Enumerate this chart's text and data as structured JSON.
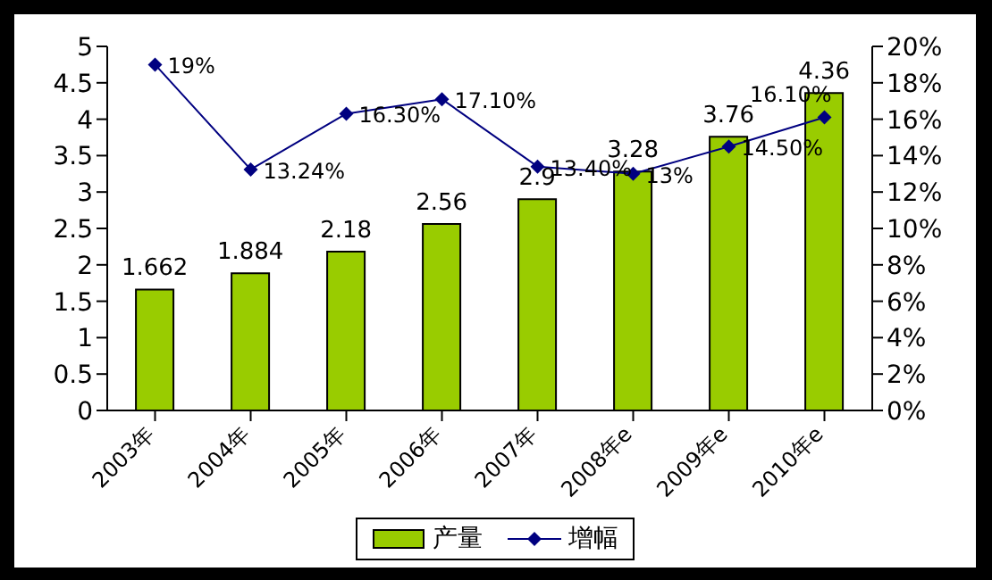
{
  "chart_data": {
    "type": "bar",
    "categories": [
      "2003年",
      "2004年",
      "2005年",
      "2006年",
      "2007年",
      "2008年e",
      "2009年e",
      "2010年e"
    ],
    "series": [
      {
        "name": "产量",
        "color": "#99cc00",
        "values": [
          1.662,
          1.884,
          2.18,
          2.56,
          2.9,
          3.28,
          3.76,
          4.36
        ],
        "value_labels": [
          "1.662",
          "1.884",
          "2.18",
          "2.56",
          "2.9",
          "3.28",
          "3.76",
          "4.36"
        ]
      },
      {
        "name": "增幅",
        "type": "line",
        "axis": "y2",
        "color": "#000080",
        "marker": "diamond",
        "values": [
          19,
          13.24,
          16.3,
          17.1,
          13.4,
          13,
          14.5,
          16.1
        ],
        "value_labels": [
          "19%",
          "13.24%",
          "16.30%",
          "17.10%",
          "13.40%",
          "13%",
          "14.50%",
          "16.10%"
        ]
      }
    ],
    "ylim": [
      0,
      5
    ],
    "yticks": [
      0,
      0.5,
      1,
      1.5,
      2,
      2.5,
      3,
      3.5,
      4,
      4.5,
      5
    ],
    "y2lim": [
      0,
      20
    ],
    "y2ticks": [
      {
        "value": 0,
        "label": "0%"
      },
      {
        "value": 2,
        "label": "2%"
      },
      {
        "value": 4,
        "label": "4%"
      },
      {
        "value": 6,
        "label": "6%"
      },
      {
        "value": 8,
        "label": "8%"
      },
      {
        "value": 10,
        "label": "10%"
      },
      {
        "value": 12,
        "label": "12%"
      },
      {
        "value": 14,
        "label": "14%"
      },
      {
        "value": 16,
        "label": "16%"
      },
      {
        "value": 18,
        "label": "18%"
      },
      {
        "value": 20,
        "label": "20%"
      }
    ],
    "grid": false,
    "legend": "bottom"
  }
}
